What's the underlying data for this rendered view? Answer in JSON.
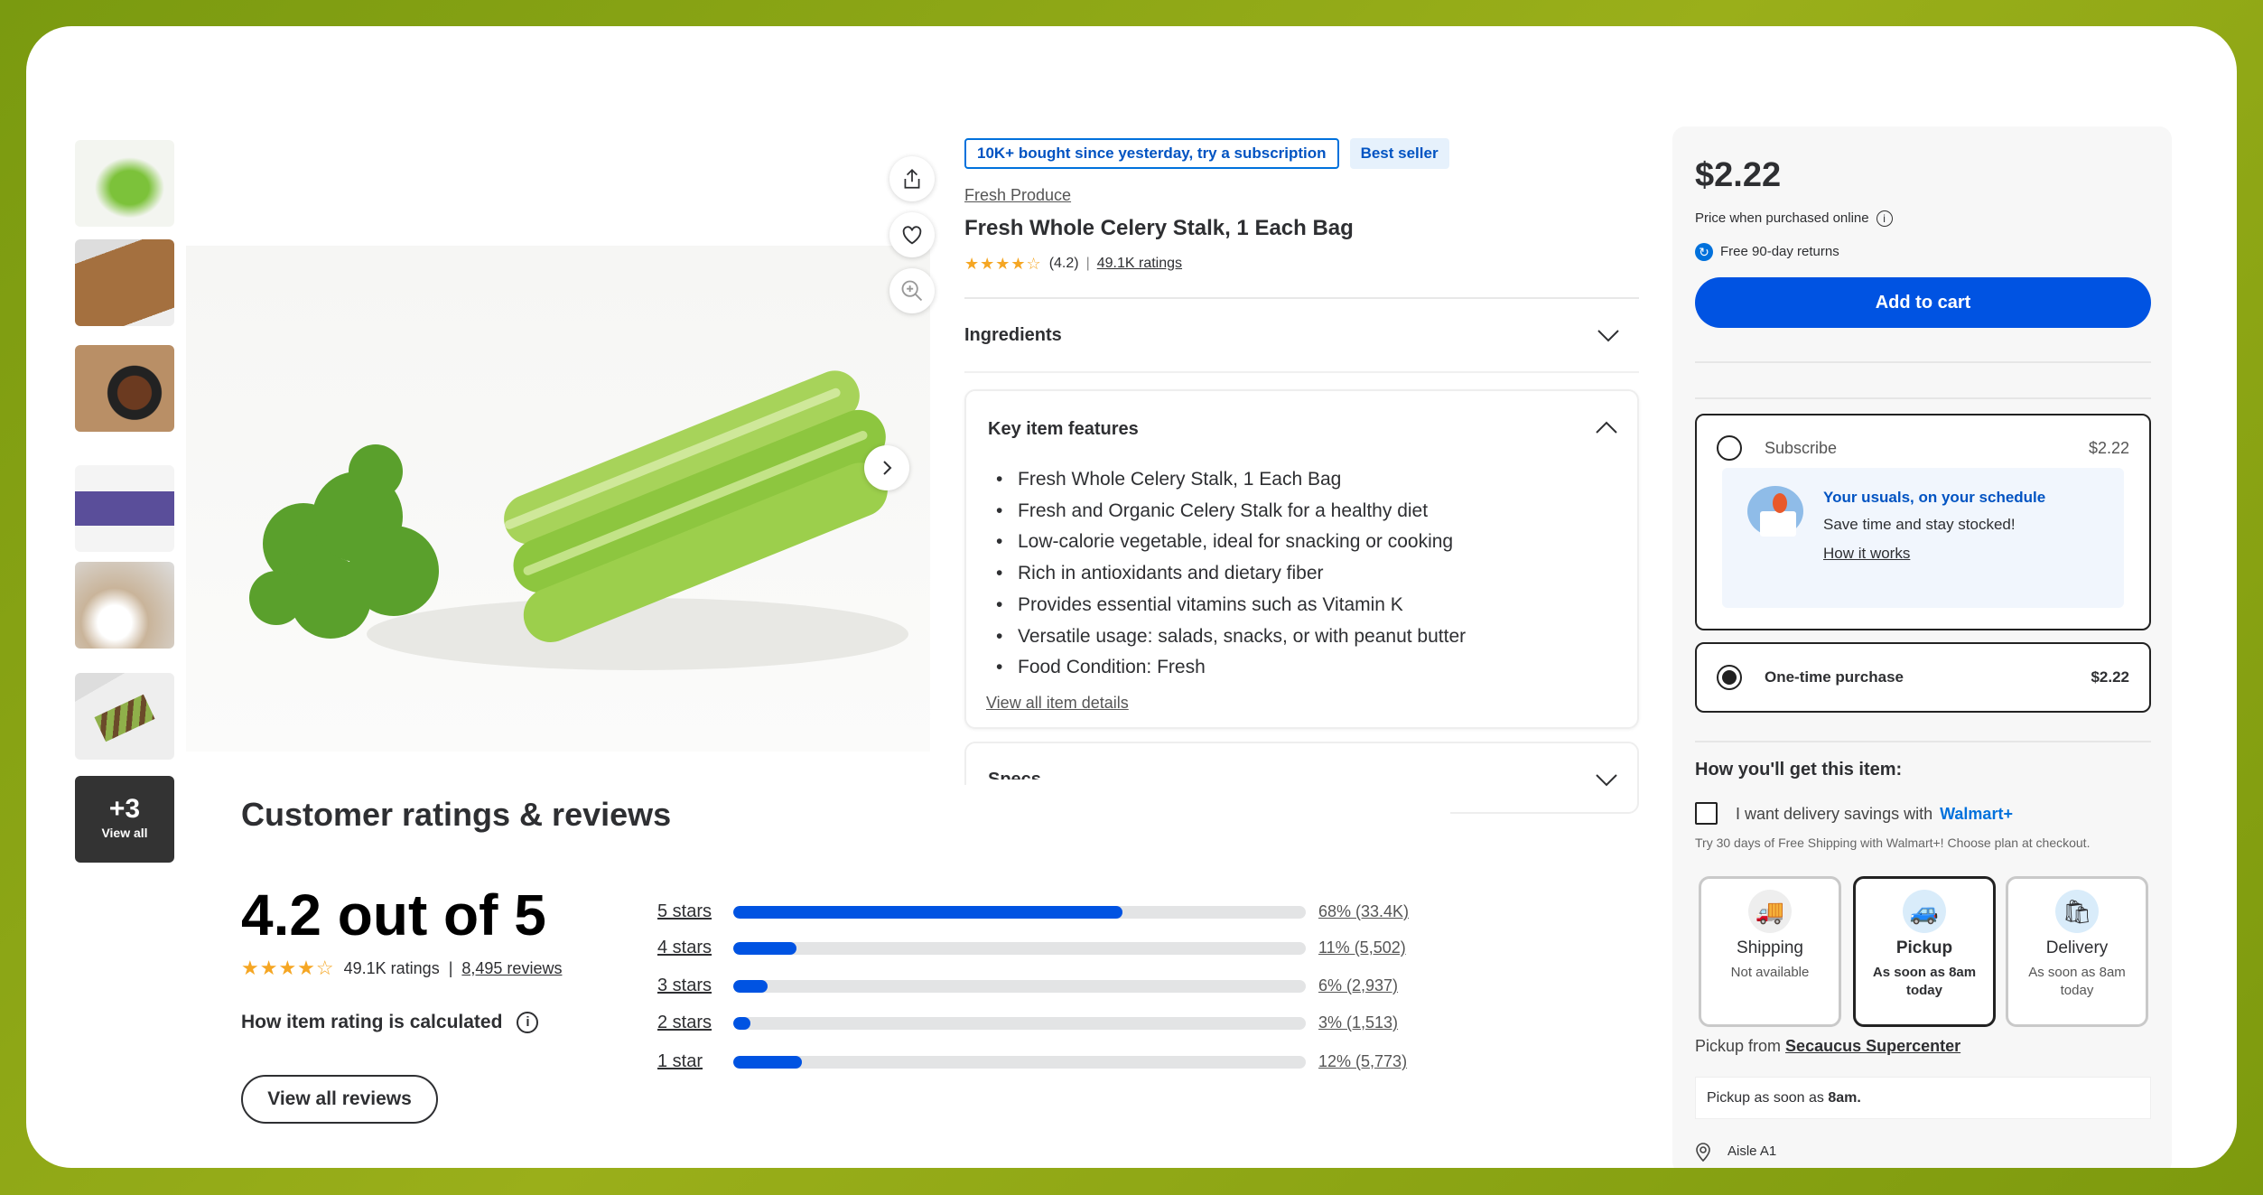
{
  "gallery": {
    "thumbnails": [
      "celery-stalk",
      "celery-on-cutting-board",
      "celery-stew-pot",
      "celery-package",
      "celery-salad",
      "celery-peanut-butter-snacks"
    ],
    "more_count": "+3",
    "more_label": "View all"
  },
  "image_actions": {
    "share": "share-icon",
    "favorite": "heart-icon",
    "zoom": "zoom-in-icon",
    "next": "chevron-right-icon"
  },
  "product": {
    "badge_subscription": "10K+ bought since yesterday, try a subscription",
    "badge_bestseller": "Best seller",
    "category": "Fresh Produce",
    "title": "Fresh Whole Celery Stalk, 1 Each Bag",
    "rating": "(4.2)",
    "rating_value": 4.2,
    "separator": "|",
    "ratings_count": "49.1K ratings"
  },
  "sections": {
    "ingredients": "Ingredients",
    "key_features": "Key item features",
    "features": [
      "Fresh Whole Celery Stalk, 1 Each Bag",
      "Fresh and Organic Celery Stalk for a healthy diet",
      "Low-calorie vegetable, ideal for snacking or cooking",
      "Rich in antioxidants and dietary fiber",
      "Provides essential vitamins such as Vitamin K",
      "Versatile usage: salads, snacks, or with peanut butter",
      "Food Condition: Fresh"
    ],
    "view_details": "View all item details",
    "specs": "Specs"
  },
  "reviews": {
    "title": "Customer ratings & reviews",
    "score": "4.2 out of 5",
    "ratings": "49.1K ratings",
    "separator": "|",
    "reviews_count": "8,495 reviews",
    "how_calculated": "How item rating is calculated",
    "view_all": "View all reviews",
    "breakdown": [
      {
        "label": "5 stars",
        "percent": 68,
        "text": "68% (33.4K)"
      },
      {
        "label": "4 stars",
        "percent": 11,
        "text": "11% (5,502)"
      },
      {
        "label": "3 stars",
        "percent": 6,
        "text": "6% (2,937)"
      },
      {
        "label": "2 stars",
        "percent": 3,
        "text": "3% (1,513)"
      },
      {
        "label": "1 star",
        "percent": 12,
        "text": "12% (5,773)"
      }
    ]
  },
  "buybox": {
    "price": "$2.22",
    "price_note": "Price when purchased online",
    "returns": "Free 90-day returns",
    "add_to_cart": "Add to cart",
    "subscribe_label": "Subscribe",
    "subscribe_price": "$2.22",
    "promo_title": "Your usuals, on your schedule",
    "promo_text": "Save time and stay stocked!",
    "promo_link": "How it works",
    "onetime_label": "One-time purchase",
    "onetime_price": "$2.22",
    "selected": "one-time",
    "how_get": "How you'll get this item:",
    "delivery_savings": "I want delivery savings with",
    "walmart_plus": "Walmart+",
    "trial": "Try 30 days of Free Shipping with Walmart+! Choose plan at checkout.",
    "options": [
      {
        "title": "Shipping",
        "sub": "Not available"
      },
      {
        "title": "Pickup",
        "sub": "As soon as 8am today"
      },
      {
        "title": "Delivery",
        "sub": "As soon as 8am today"
      }
    ],
    "pickup_from": "Pickup from",
    "store": "Secaucus Supercenter",
    "pickup_soon": "Pickup as soon as",
    "pickup_time": "8am.",
    "aisle": "Aisle A1"
  },
  "colors": {
    "accent": "#0053e2",
    "star": "#f5a623",
    "panel": "#f7f7f7",
    "bar_track": "#e3e4e5"
  }
}
